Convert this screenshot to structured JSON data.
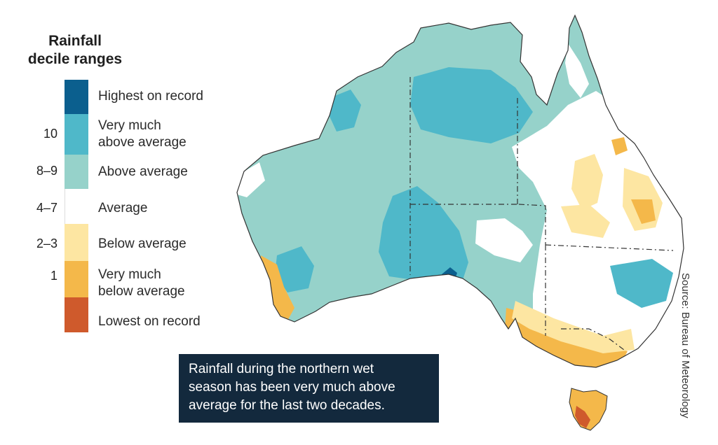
{
  "legend": {
    "title_line1": "Rainfall",
    "title_line2": "decile ranges",
    "items": [
      {
        "deciles": "",
        "label_line1": "Highest on record",
        "label_line2": "",
        "color": "#0b5f8e"
      },
      {
        "deciles": "10",
        "label_line1": "Very much",
        "label_line2": "above average",
        "color": "#4fb8c9"
      },
      {
        "deciles": "8–9",
        "label_line1": "Above average",
        "label_line2": "",
        "color": "#96d2ca"
      },
      {
        "deciles": "4–7",
        "label_line1": "Average",
        "label_line2": "",
        "color": "#ffffff"
      },
      {
        "deciles": "2–3",
        "label_line1": "Below average",
        "label_line2": "",
        "color": "#fde6a2"
      },
      {
        "deciles": "1",
        "label_line1": "Very much",
        "label_line2": "below average",
        "color": "#f4b84a"
      },
      {
        "deciles": "",
        "label_line1": "Lowest on record",
        "label_line2": "",
        "color": "#cf5a2c"
      }
    ]
  },
  "source": "Source: Bureau of Meteorology",
  "callout": {
    "line1": "Rainfall during the northern wet",
    "line2": "season has been very much above",
    "line3": "average for the last two decades."
  }
}
